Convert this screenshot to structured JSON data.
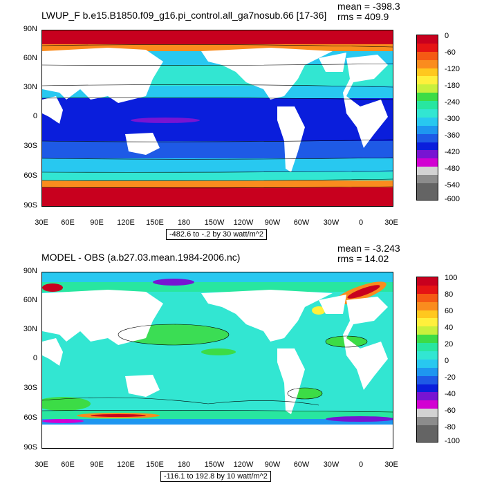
{
  "top": {
    "title": "LWUP_F b.e15.B1850.f09_g16.pi_control.all_ga7nosub.66 [17-36]",
    "mean": "mean = -398.3",
    "rms": "rms = 409.9",
    "range": "-482.6 to -.2 by 30 watt/m^2",
    "colorbar": {
      "labels": [
        "0",
        "-60",
        "-120",
        "-180",
        "-240",
        "-300",
        "-360",
        "-420",
        "-480",
        "-540",
        "-600"
      ],
      "colors": [
        "#c8001e",
        "#e51414",
        "#f55a14",
        "#fa8c1e",
        "#ffc81e",
        "#fff03c",
        "#c8f03c",
        "#3cdc46",
        "#28e6a0",
        "#32e6d2",
        "#28c8f0",
        "#1e96f0",
        "#1e5ae6",
        "#0a1edc",
        "#7814d2",
        "#d200d2",
        "#d2d2d2",
        "#8c8c8c",
        "#646464",
        "#646464"
      ]
    }
  },
  "bottom": {
    "title": "MODEL - OBS (a.b27.03.mean.1984-2006.nc)",
    "mean": "mean = -3.243",
    "rms": "rms = 14.02",
    "range": "-116.1 to 192.8 by 10 watt/m^2",
    "colorbar": {
      "labels": [
        "100",
        "80",
        "60",
        "40",
        "20",
        "0",
        "-20",
        "-40",
        "-60",
        "-80",
        "-100"
      ],
      "colors": [
        "#c8001e",
        "#e51414",
        "#f55a14",
        "#fa8c1e",
        "#ffc81e",
        "#fff03c",
        "#c8f03c",
        "#3cdc46",
        "#28e6a0",
        "#32e6d2",
        "#28c8f0",
        "#1e96f0",
        "#1e5ae6",
        "#0a1edc",
        "#7814d2",
        "#d200d2",
        "#d2d2d2",
        "#8c8c8c",
        "#646464",
        "#646464"
      ]
    }
  },
  "axes": {
    "lat_labels": [
      "90N",
      "60N",
      "30N",
      "0",
      "30S",
      "60S",
      "90S"
    ],
    "lon_labels": [
      "30E",
      "60E",
      "90E",
      "120E",
      "150E",
      "180",
      "150W",
      "120W",
      "90W",
      "60W",
      "30W",
      "0",
      "30E"
    ]
  }
}
